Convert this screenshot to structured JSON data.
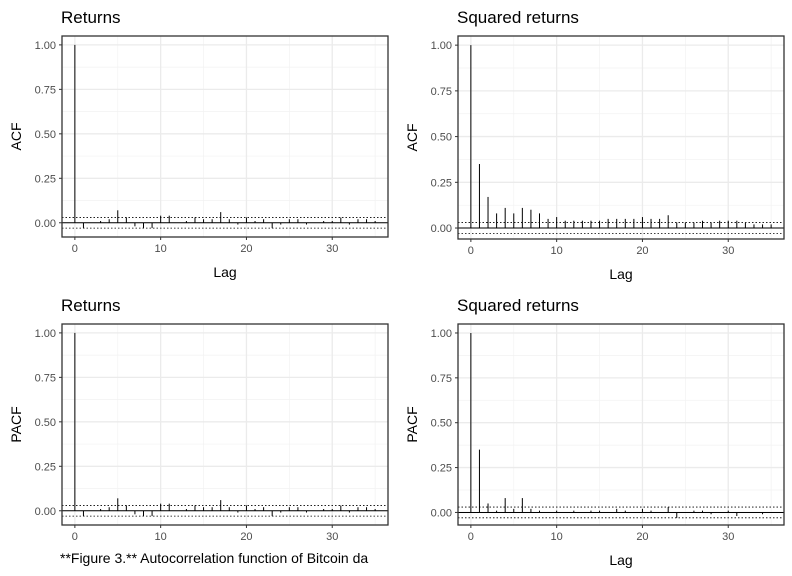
{
  "caption": "**Figure 3.** Autocorrelation function of Bitcoin da",
  "chart_data": [
    {
      "type": "bar",
      "title": "Returns",
      "xlabel": "Lag",
      "ylabel": "ACF",
      "xlim": [
        -1.5,
        36.5
      ],
      "ylim": [
        -0.08,
        1.05
      ],
      "x_ticks": [
        0,
        10,
        20,
        30
      ],
      "y_ticks": [
        0,
        0.25,
        0.5,
        0.75,
        1
      ],
      "y_tick_labels": [
        "0.00",
        "0.25",
        "0.50",
        "0.75",
        "1.00"
      ],
      "conf_bound": 0.03,
      "lags": [
        0,
        1,
        2,
        3,
        4,
        5,
        6,
        7,
        8,
        9,
        10,
        11,
        12,
        13,
        14,
        15,
        16,
        17,
        18,
        19,
        20,
        21,
        22,
        23,
        24,
        25,
        26,
        27,
        28,
        29,
        30,
        31,
        32,
        33,
        34,
        35
      ],
      "values": [
        1.0,
        -0.03,
        0.0,
        0.01,
        0.02,
        0.07,
        0.03,
        -0.02,
        -0.03,
        -0.03,
        0.04,
        0.04,
        0.0,
        0.01,
        0.03,
        0.02,
        0.02,
        0.06,
        0.02,
        -0.01,
        0.03,
        0.01,
        0.02,
        -0.03,
        -0.01,
        0.02,
        0.02,
        -0.01,
        0.0,
        0.01,
        0.01,
        0.03,
        -0.01,
        0.02,
        0.02,
        0.01
      ],
      "grid": true
    },
    {
      "type": "bar",
      "title": "Squared returns",
      "xlabel": "Lag",
      "ylabel": "ACF",
      "xlim": [
        -1.5,
        36.5
      ],
      "ylim": [
        -0.06,
        1.05
      ],
      "x_ticks": [
        0,
        10,
        20,
        30
      ],
      "y_ticks": [
        0,
        0.25,
        0.5,
        0.75,
        1
      ],
      "y_tick_labels": [
        "0.00",
        "0.25",
        "0.50",
        "0.75",
        "1.00"
      ],
      "conf_bound": 0.03,
      "lags": [
        0,
        1,
        2,
        3,
        4,
        5,
        6,
        7,
        8,
        9,
        10,
        11,
        12,
        13,
        14,
        15,
        16,
        17,
        18,
        19,
        20,
        21,
        22,
        23,
        24,
        25,
        26,
        27,
        28,
        29,
        30,
        31,
        32,
        33,
        34,
        35
      ],
      "values": [
        1.0,
        0.35,
        0.17,
        0.08,
        0.11,
        0.08,
        0.11,
        0.1,
        0.08,
        0.05,
        0.06,
        0.04,
        0.04,
        0.04,
        0.04,
        0.04,
        0.05,
        0.05,
        0.05,
        0.05,
        0.06,
        0.05,
        0.05,
        0.07,
        0.03,
        0.03,
        0.03,
        0.04,
        0.03,
        0.04,
        0.04,
        0.04,
        0.03,
        0.02,
        0.02,
        0.02
      ],
      "grid": true
    },
    {
      "type": "bar",
      "title": "Returns",
      "xlabel": "",
      "ylabel": "PACF",
      "xlim": [
        -1.5,
        36.5
      ],
      "ylim": [
        -0.08,
        1.05
      ],
      "x_ticks": [
        0,
        10,
        20,
        30
      ],
      "y_ticks": [
        0,
        0.25,
        0.5,
        0.75,
        1
      ],
      "y_tick_labels": [
        "0.00",
        "0.25",
        "0.50",
        "0.75",
        "1.00"
      ],
      "conf_bound": 0.03,
      "lags": [
        0,
        1,
        2,
        3,
        4,
        5,
        6,
        7,
        8,
        9,
        10,
        11,
        12,
        13,
        14,
        15,
        16,
        17,
        18,
        19,
        20,
        21,
        22,
        23,
        24,
        25,
        26,
        27,
        28,
        29,
        30,
        31,
        32,
        33,
        34,
        35
      ],
      "values": [
        1.0,
        -0.03,
        0.0,
        0.01,
        0.02,
        0.07,
        0.03,
        -0.02,
        -0.03,
        -0.03,
        0.04,
        0.04,
        0.0,
        0.01,
        0.03,
        0.02,
        0.02,
        0.06,
        0.02,
        -0.01,
        0.03,
        0.01,
        0.02,
        -0.03,
        -0.01,
        0.02,
        0.02,
        -0.01,
        0.0,
        0.01,
        0.01,
        0.03,
        -0.01,
        0.02,
        0.02,
        0.01
      ],
      "grid": true
    },
    {
      "type": "bar",
      "title": "Squared returns",
      "xlabel": "Lag",
      "ylabel": "PACF",
      "xlim": [
        -1.5,
        36.5
      ],
      "ylim": [
        -0.07,
        1.05
      ],
      "x_ticks": [
        0,
        10,
        20,
        30
      ],
      "y_ticks": [
        0,
        0.25,
        0.5,
        0.75,
        1
      ],
      "y_tick_labels": [
        "0.00",
        "0.25",
        "0.50",
        "0.75",
        "1.00"
      ],
      "conf_bound": 0.03,
      "lags": [
        0,
        1,
        2,
        3,
        4,
        5,
        6,
        7,
        8,
        9,
        10,
        11,
        12,
        13,
        14,
        15,
        16,
        17,
        18,
        19,
        20,
        21,
        22,
        23,
        24,
        25,
        26,
        27,
        28,
        29,
        30,
        31,
        32,
        33,
        34,
        35
      ],
      "values": [
        1.0,
        0.35,
        0.05,
        0.01,
        0.08,
        0.02,
        0.08,
        0.02,
        0.01,
        0.0,
        0.01,
        0.0,
        0.01,
        0.0,
        0.01,
        0.01,
        0.0,
        0.02,
        0.01,
        0.0,
        0.02,
        0.01,
        0.0,
        0.03,
        -0.03,
        0.0,
        0.01,
        0.01,
        -0.01,
        0.0,
        0.01,
        -0.02,
        0.0,
        0.0,
        -0.01,
        0.0
      ],
      "grid": true
    }
  ]
}
